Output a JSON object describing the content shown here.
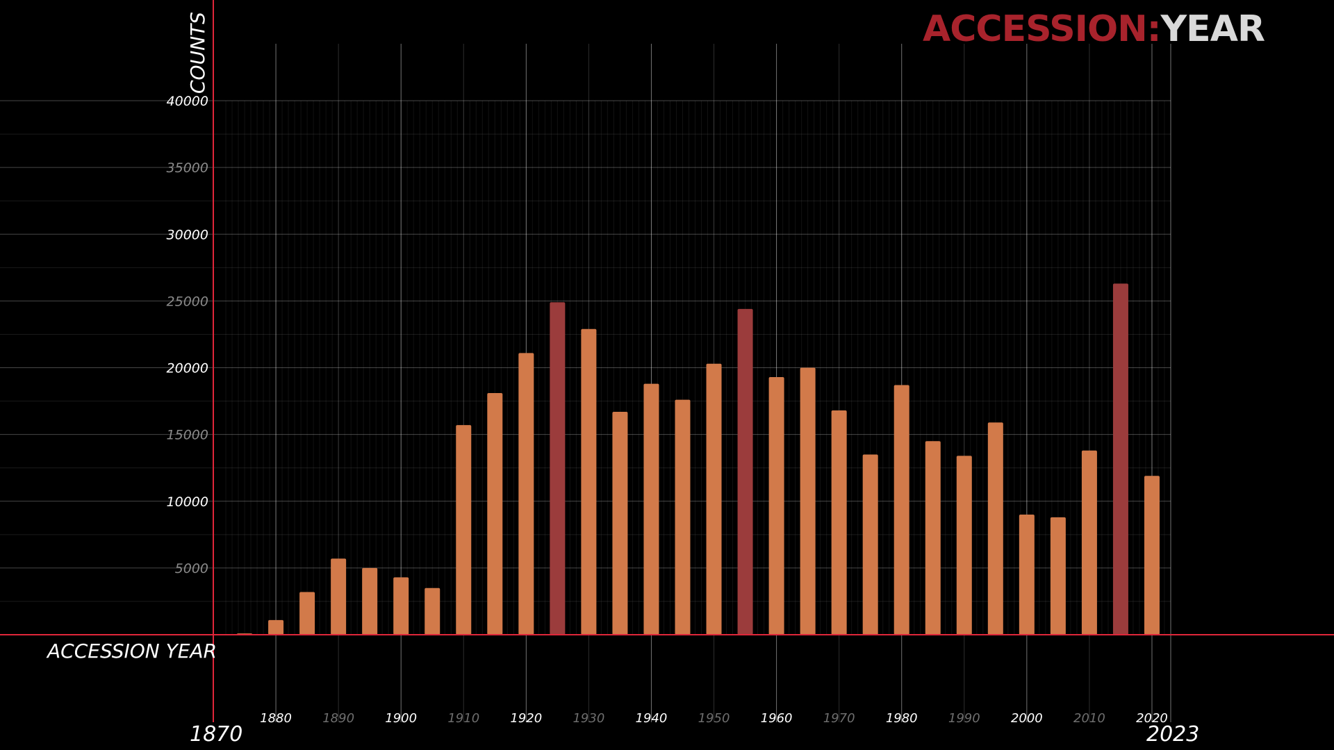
{
  "title": {
    "part1": "ACCESSION:",
    "part2": "YEAR"
  },
  "chart_data": {
    "type": "bar",
    "xlabel": "ACCESSION YEAR",
    "ylabel": "COUNTS",
    "xlim": [
      1870,
      2023
    ],
    "ylim": [
      0,
      40000
    ],
    "x_range_labels": {
      "min": "1870",
      "max": "2023"
    },
    "y_ticks": [
      5000,
      10000,
      15000,
      20000,
      25000,
      30000,
      35000,
      40000
    ],
    "x_ticks": [
      1880,
      1890,
      1900,
      1910,
      1920,
      1930,
      1940,
      1950,
      1960,
      1970,
      1980,
      1990,
      2000,
      2010,
      2020
    ],
    "x_tick_emphasis": [
      1880,
      1900,
      1920,
      1940,
      1960,
      1980,
      2000,
      2020
    ],
    "grid": true,
    "legend": "none",
    "colors": {
      "normal": "#d27a4a",
      "highlight": "#9b3c3c",
      "axis": "#e0263a"
    },
    "bars": [
      {
        "x": 1875,
        "value": 100,
        "highlight": false
      },
      {
        "x": 1880,
        "value": 1100,
        "highlight": false
      },
      {
        "x": 1885,
        "value": 3200,
        "highlight": false
      },
      {
        "x": 1890,
        "value": 5700,
        "highlight": false
      },
      {
        "x": 1895,
        "value": 5000,
        "highlight": false
      },
      {
        "x": 1900,
        "value": 4300,
        "highlight": false
      },
      {
        "x": 1905,
        "value": 3500,
        "highlight": false
      },
      {
        "x": 1910,
        "value": 15700,
        "highlight": false
      },
      {
        "x": 1915,
        "value": 18100,
        "highlight": false
      },
      {
        "x": 1920,
        "value": 21100,
        "highlight": false
      },
      {
        "x": 1925,
        "value": 24900,
        "highlight": true
      },
      {
        "x": 1930,
        "value": 22900,
        "highlight": false
      },
      {
        "x": 1935,
        "value": 16700,
        "highlight": false
      },
      {
        "x": 1940,
        "value": 18800,
        "highlight": false
      },
      {
        "x": 1945,
        "value": 17600,
        "highlight": false
      },
      {
        "x": 1950,
        "value": 20300,
        "highlight": false
      },
      {
        "x": 1955,
        "value": 24400,
        "highlight": true
      },
      {
        "x": 1960,
        "value": 19300,
        "highlight": false
      },
      {
        "x": 1965,
        "value": 20000,
        "highlight": false
      },
      {
        "x": 1970,
        "value": 16800,
        "highlight": false
      },
      {
        "x": 1975,
        "value": 13500,
        "highlight": false
      },
      {
        "x": 1980,
        "value": 18700,
        "highlight": false
      },
      {
        "x": 1985,
        "value": 14500,
        "highlight": false
      },
      {
        "x": 1990,
        "value": 13400,
        "highlight": false
      },
      {
        "x": 1995,
        "value": 15900,
        "highlight": false
      },
      {
        "x": 2000,
        "value": 9000,
        "highlight": false
      },
      {
        "x": 2005,
        "value": 8800,
        "highlight": false
      },
      {
        "x": 2010,
        "value": 13800,
        "highlight": false
      },
      {
        "x": 2015,
        "value": 26300,
        "highlight": true
      },
      {
        "x": 2020,
        "value": 11900,
        "highlight": false
      }
    ]
  }
}
